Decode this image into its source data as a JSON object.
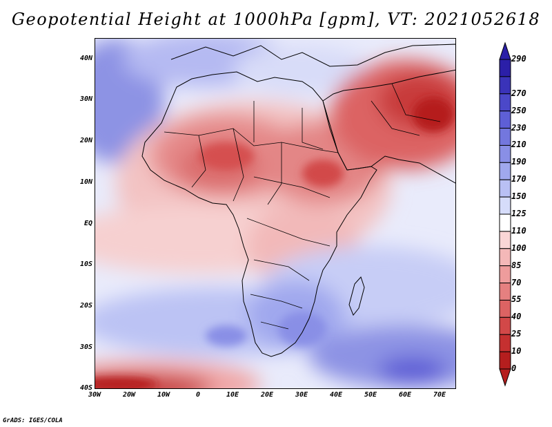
{
  "title": "Geopotential Height at 1000hPa [gpm], VT: 2021052618",
  "footer": "GrADS: IGES/COLA",
  "map": {
    "lat_labels": [
      "40N",
      "30N",
      "20N",
      "10N",
      "EQ",
      "10S",
      "20S",
      "30S",
      "40S"
    ],
    "lon_labels": [
      "30W",
      "20W",
      "10W",
      "0",
      "10E",
      "20E",
      "30E",
      "40E",
      "50E",
      "60E",
      "70E"
    ],
    "lat_range": [
      -40,
      45
    ],
    "lon_range": [
      -30,
      75
    ],
    "region": "Africa, Middle East and adjacent oceans"
  },
  "colorbar": {
    "levels": [
      "290",
      "270",
      "250",
      "230",
      "210",
      "190",
      "170",
      "150",
      "125",
      "110",
      "100",
      "85",
      "70",
      "55",
      "40",
      "25",
      "10",
      "0"
    ],
    "colors": [
      "#2b1fa8",
      "#3a33b9",
      "#4b48c9",
      "#5e5fd6",
      "#7377de",
      "#898fe6",
      "#a0a8ee",
      "#b9c0f4",
      "#d6dcfa",
      "#ffffff",
      "#fad6d6",
      "#f4b8b8",
      "#ee9c9c",
      "#e58080",
      "#dc6363",
      "#d24848",
      "#c53030",
      "#b51e1e"
    ]
  }
}
